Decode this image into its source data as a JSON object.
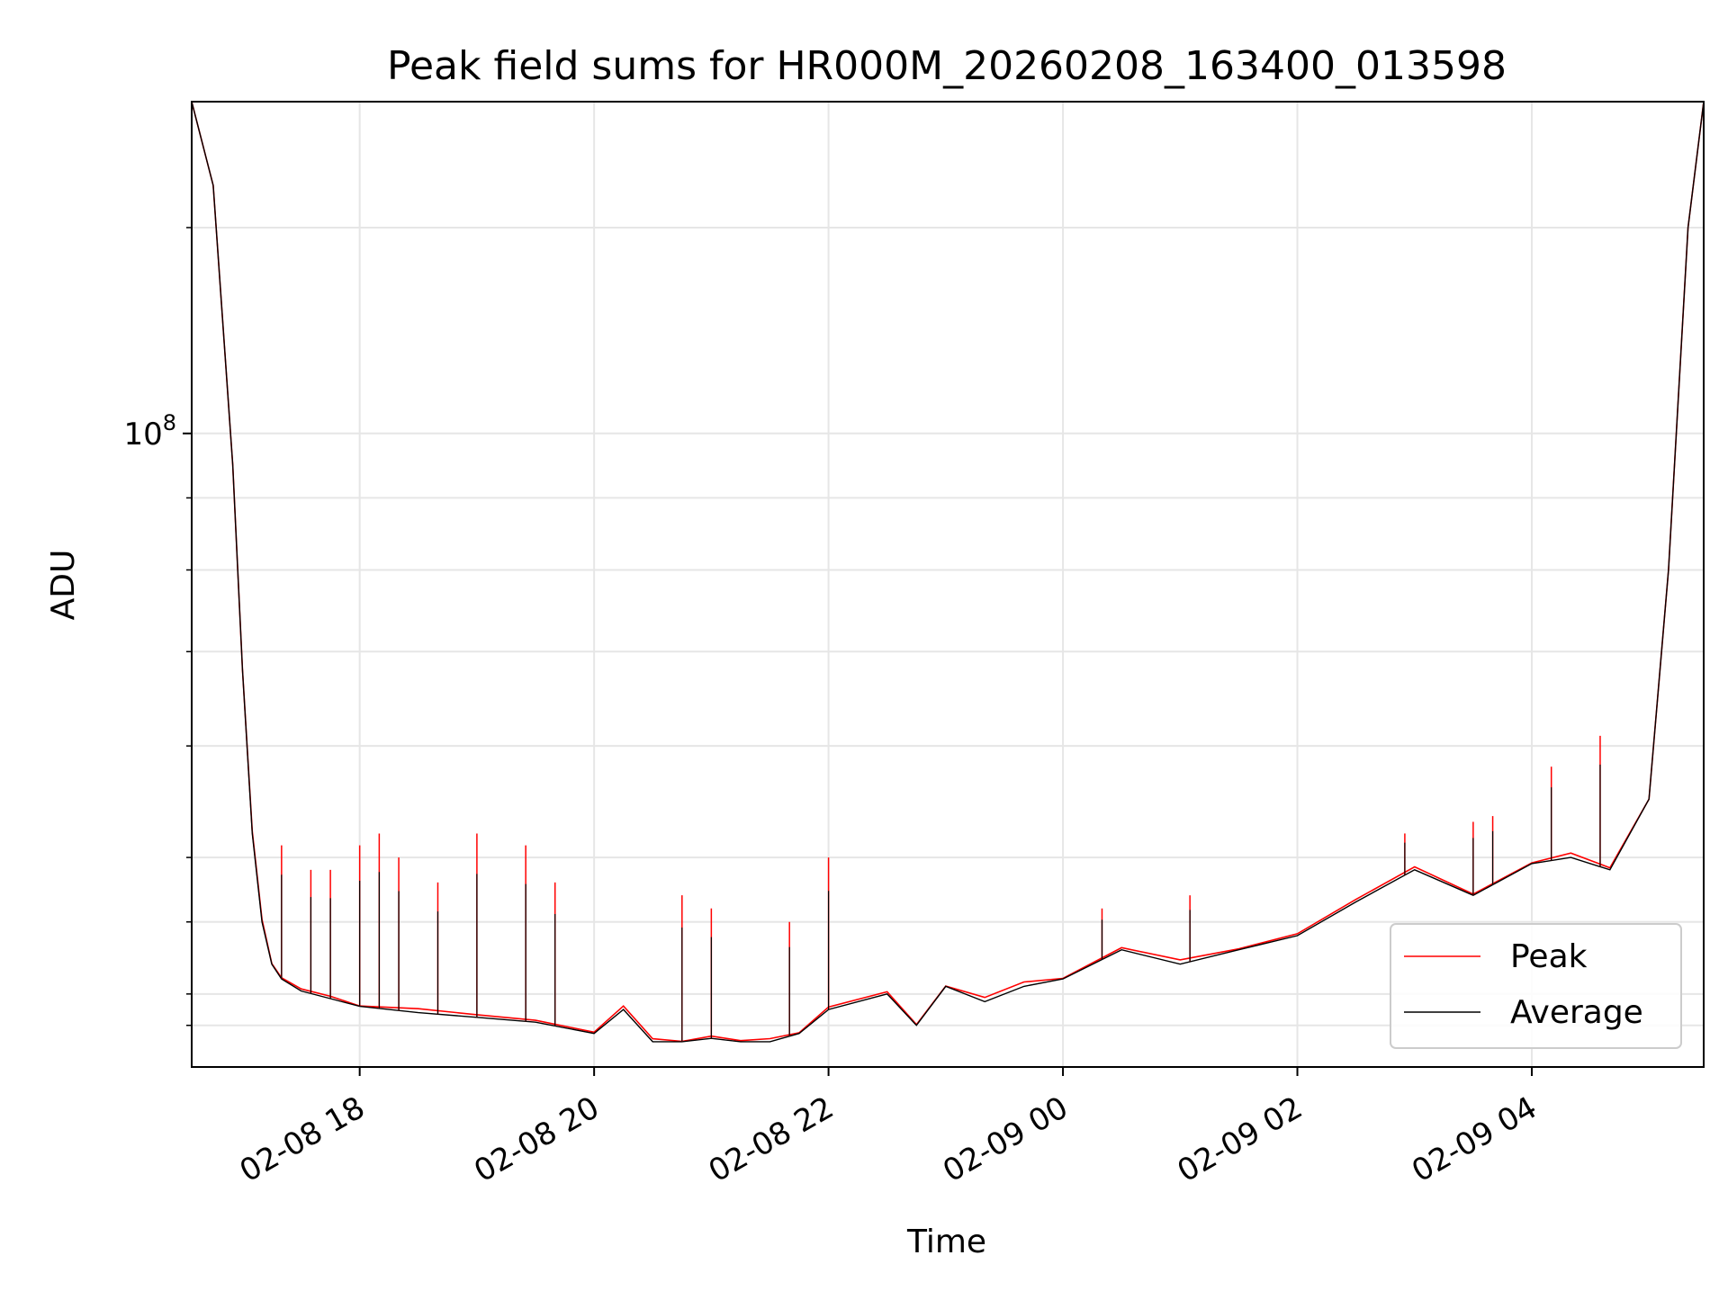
{
  "chart_data": {
    "type": "line",
    "title": "Peak field sums for HR000M_20260208_163400_013598",
    "xlabel": "Time",
    "ylabel": "ADU",
    "yscale": "log",
    "ylim": [
      35500000.0,
      172000000.0
    ],
    "xlim": [
      "2026-02-08 16:34",
      "2026-02-09 05:28"
    ],
    "grid": true,
    "legend_position": "lower-right",
    "x_ticks": [
      "02-08 18",
      "02-08 20",
      "02-08 22",
      "02-09 00",
      "02-09 02",
      "02-09 04"
    ],
    "x_tick_times": [
      "2026-02-08 18:00",
      "2026-02-08 20:00",
      "2026-02-08 22:00",
      "2026-02-09 00:00",
      "2026-02-09 02:00",
      "2026-02-09 04:00"
    ],
    "y_ticks": [
      {
        "value": 100000000,
        "base": "10",
        "exponent": "8"
      }
    ],
    "y_minor_ticks": [
      38000000,
      40000000,
      45000000,
      50000000,
      60000000,
      70000000,
      80000000,
      90000000,
      140000000
    ],
    "series": [
      {
        "name": "Peak",
        "color": "#ff0000"
      },
      {
        "name": "Average",
        "color": "#000000"
      }
    ],
    "average_trend": {
      "x": [
        "2026-02-08 16:34",
        "2026-02-08 16:45",
        "2026-02-08 16:55",
        "2026-02-08 17:00",
        "2026-02-08 17:05",
        "2026-02-08 17:10",
        "2026-02-08 17:15",
        "2026-02-08 17:20",
        "2026-02-08 17:30",
        "2026-02-08 17:45",
        "2026-02-08 18:00",
        "2026-02-08 18:30",
        "2026-02-08 19:00",
        "2026-02-08 19:30",
        "2026-02-08 20:00",
        "2026-02-08 20:15",
        "2026-02-08 20:30",
        "2026-02-08 20:45",
        "2026-02-08 21:00",
        "2026-02-08 21:15",
        "2026-02-08 21:30",
        "2026-02-08 21:45",
        "2026-02-08 22:00",
        "2026-02-08 22:30",
        "2026-02-08 22:45",
        "2026-02-08 23:00",
        "2026-02-08 23:20",
        "2026-02-08 23:40",
        "2026-02-09 00:00",
        "2026-02-09 00:30",
        "2026-02-09 01:00",
        "2026-02-09 01:30",
        "2026-02-09 02:00",
        "2026-02-09 02:30",
        "2026-02-09 03:00",
        "2026-02-09 03:30",
        "2026-02-09 04:00",
        "2026-02-09 04:20",
        "2026-02-09 04:40",
        "2026-02-09 05:00",
        "2026-02-09 05:10",
        "2026-02-09 05:20",
        "2026-02-09 05:28"
      ],
      "values": [
        172000000,
        150000000,
        95000000,
        68000000,
        52000000,
        45000000,
        42000000,
        41000000,
        40200000,
        39700000,
        39200000,
        38800000,
        38500000,
        38200000,
        37500000,
        39000000,
        37000000,
        37000000,
        37200000,
        37000000,
        37000000,
        37500000,
        39000000,
        40000000,
        38000000,
        40500000,
        39500000,
        40500000,
        41000000,
        43000000,
        42000000,
        43000000,
        44000000,
        46500000,
        49000000,
        47000000,
        49500000,
        50000000,
        49000000,
        55000000,
        80000000,
        140000000,
        172000000
      ]
    },
    "peak_spikes": {
      "x": [
        "2026-02-08 17:20",
        "2026-02-08 17:35",
        "2026-02-08 17:45",
        "2026-02-08 18:00",
        "2026-02-08 18:10",
        "2026-02-08 18:20",
        "2026-02-08 18:40",
        "2026-02-08 19:00",
        "2026-02-08 19:25",
        "2026-02-08 19:40",
        "2026-02-08 20:45",
        "2026-02-08 21:00",
        "2026-02-08 21:40",
        "2026-02-08 22:00",
        "2026-02-09 00:20",
        "2026-02-09 01:05",
        "2026-02-09 02:55",
        "2026-02-09 03:30",
        "2026-02-09 03:40",
        "2026-02-09 04:10",
        "2026-02-09 04:35"
      ],
      "values": [
        51000000,
        49000000,
        49000000,
        51000000,
        52000000,
        50000000,
        48000000,
        52000000,
        51000000,
        48000000,
        47000000,
        46000000,
        45000000,
        50000000,
        46000000,
        47000000,
        52000000,
        53000000,
        53500000,
        58000000,
        61000000
      ]
    }
  }
}
